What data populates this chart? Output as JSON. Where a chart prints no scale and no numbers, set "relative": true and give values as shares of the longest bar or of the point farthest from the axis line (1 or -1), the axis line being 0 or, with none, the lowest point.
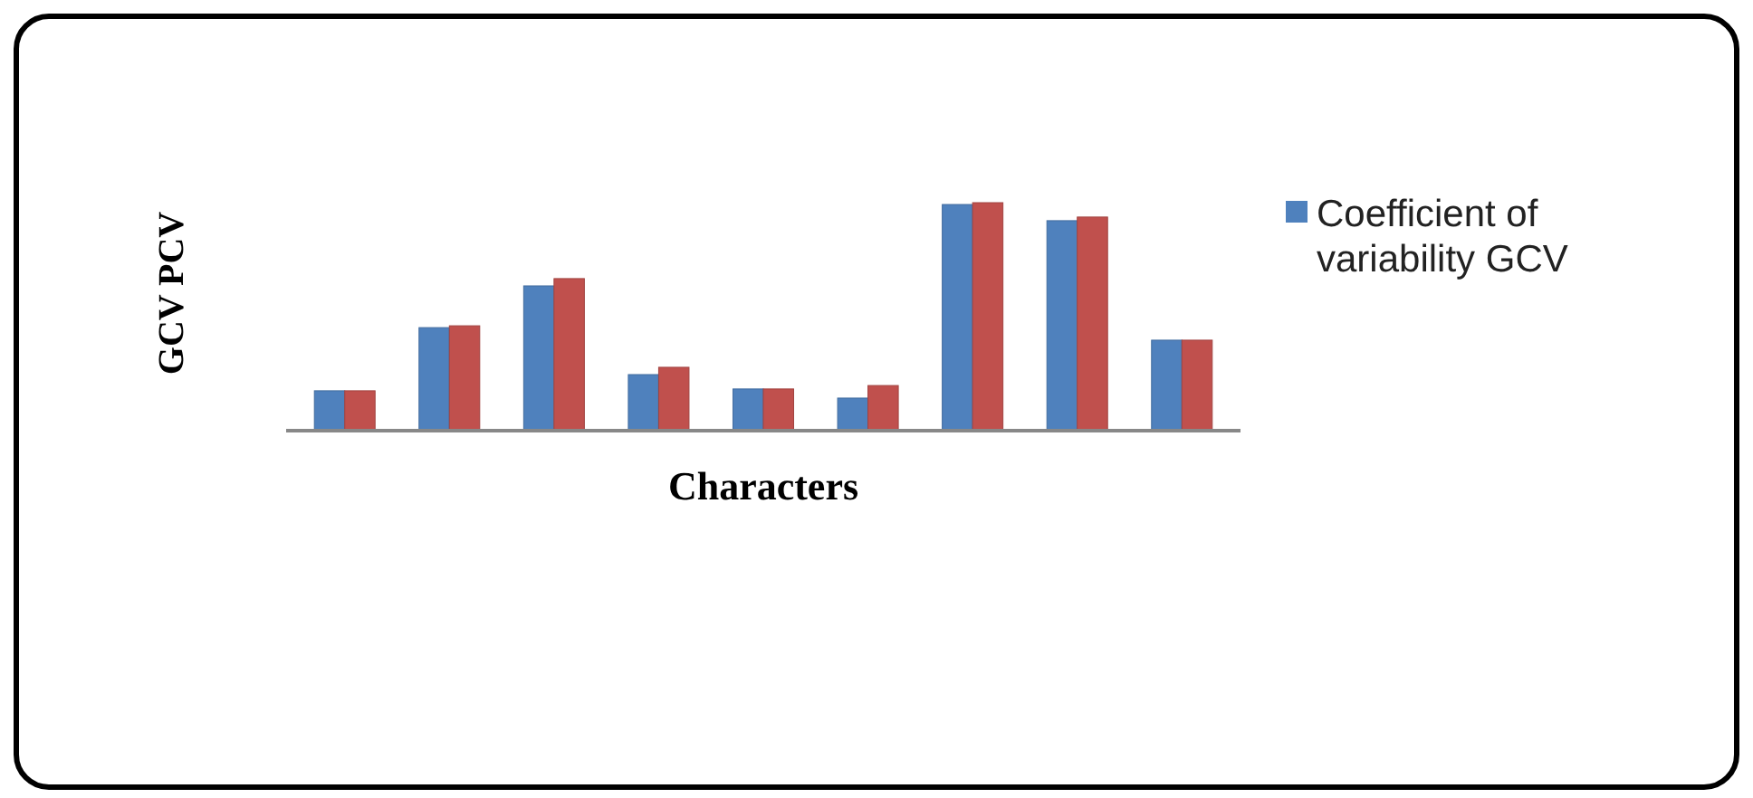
{
  "chart_data": {
    "type": "bar",
    "relative": true,
    "xlabel": "Characters",
    "ylabel": "GCV PCV",
    "legend": "right",
    "categories": [
      null,
      null,
      null,
      null,
      null,
      null,
      null,
      null,
      null
    ],
    "series": [
      {
        "name": "Coefficient of variability GCV",
        "color": "#4f81bd",
        "values": [
          0.175,
          0.452,
          0.635,
          0.246,
          0.183,
          0.143,
          0.992,
          0.921,
          0.397
        ]
      },
      {
        "color": "#c0504d",
        "values": [
          0.175,
          0.46,
          0.667,
          0.278,
          0.183,
          0.198,
          1,
          0.937,
          0.397
        ]
      }
    ]
  }
}
